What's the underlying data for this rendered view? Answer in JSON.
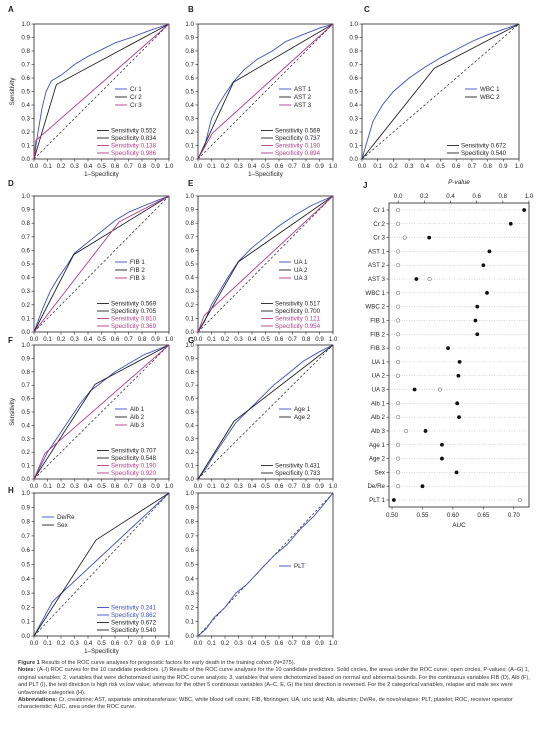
{
  "panels": [
    {
      "id": "A",
      "letter": "A",
      "xlabel": "1–Specificity",
      "ylabel": "Sensitivity",
      "legend": [
        "Cr 1",
        "Cr 2",
        "Cr 3"
      ],
      "stats": [
        {
          "text": "Sensitivity 0.552",
          "color": "#222"
        },
        {
          "text": "Specificity 0.834",
          "color": "#222"
        },
        {
          "text": "Sensitivity 0.138",
          "color": "#b03a8c"
        },
        {
          "text": "Specificity 0.986",
          "color": "#b03a8c"
        }
      ],
      "curves": [
        {
          "color": "#3a4fbf",
          "pts": [
            [
              0,
              0
            ],
            [
              0.03,
              0.2
            ],
            [
              0.06,
              0.38
            ],
            [
              0.09,
              0.5
            ],
            [
              0.13,
              0.58
            ],
            [
              0.2,
              0.62
            ],
            [
              0.3,
              0.7
            ],
            [
              0.4,
              0.76
            ],
            [
              0.52,
              0.82
            ],
            [
              0.6,
              0.86
            ],
            [
              0.72,
              0.9
            ],
            [
              0.85,
              0.95
            ],
            [
              1,
              1
            ]
          ]
        },
        {
          "color": "#222",
          "pts": [
            [
              0,
              0
            ],
            [
              0.166,
              0.552
            ],
            [
              1,
              1
            ]
          ]
        },
        {
          "color": "#b03a8c",
          "pts": [
            [
              0,
              0
            ],
            [
              0.014,
              0.138
            ],
            [
              1,
              1
            ]
          ]
        }
      ]
    },
    {
      "id": "B",
      "letter": "B",
      "xlabel": "1–Specificity",
      "ylabel": "",
      "legend": [
        "AST 1",
        "AST 2",
        "AST 3"
      ],
      "stats": [
        {
          "text": "Sensitivity 0.569",
          "color": "#222"
        },
        {
          "text": "Specificity 0.737",
          "color": "#222"
        },
        {
          "text": "Sensitivity 0.190",
          "color": "#b03a8c"
        },
        {
          "text": "Specificity 0.894",
          "color": "#b03a8c"
        }
      ],
      "curves": [
        {
          "color": "#3a4fbf",
          "pts": [
            [
              0,
              0
            ],
            [
              0.05,
              0.1
            ],
            [
              0.1,
              0.3
            ],
            [
              0.15,
              0.4
            ],
            [
              0.2,
              0.48
            ],
            [
              0.26,
              0.57
            ],
            [
              0.34,
              0.66
            ],
            [
              0.44,
              0.74
            ],
            [
              0.55,
              0.8
            ],
            [
              0.65,
              0.87
            ],
            [
              0.8,
              0.93
            ],
            [
              0.9,
              0.97
            ],
            [
              1,
              1
            ]
          ]
        },
        {
          "color": "#222",
          "pts": [
            [
              0,
              0
            ],
            [
              0.263,
              0.569
            ],
            [
              1,
              1
            ]
          ]
        },
        {
          "color": "#b03a8c",
          "pts": [
            [
              0,
              0
            ],
            [
              0.106,
              0.19
            ],
            [
              1,
              1
            ]
          ]
        }
      ]
    },
    {
      "id": "C",
      "letter": "C",
      "xlabel": "",
      "ylabel": "",
      "legend": [
        "WBC 1",
        "WBC 2"
      ],
      "stats": [
        {
          "text": "Sensitivity 0.672",
          "color": "#222"
        },
        {
          "text": "Specificity 0.540",
          "color": "#222"
        }
      ],
      "curves": [
        {
          "color": "#3a4fbf",
          "pts": [
            [
              0,
              0
            ],
            [
              0.03,
              0.12
            ],
            [
              0.07,
              0.28
            ],
            [
              0.13,
              0.4
            ],
            [
              0.2,
              0.5
            ],
            [
              0.3,
              0.6
            ],
            [
              0.4,
              0.68
            ],
            [
              0.5,
              0.75
            ],
            [
              0.6,
              0.81
            ],
            [
              0.7,
              0.87
            ],
            [
              0.8,
              0.92
            ],
            [
              0.9,
              0.96
            ],
            [
              1,
              1
            ]
          ]
        },
        {
          "color": "#222",
          "pts": [
            [
              0,
              0
            ],
            [
              0.46,
              0.672
            ],
            [
              1,
              1
            ]
          ]
        }
      ]
    },
    {
      "id": "D",
      "letter": "D",
      "xlabel": "",
      "ylabel": "",
      "legend": [
        "FIB 1",
        "FIB 2",
        "FIB 3"
      ],
      "stats": [
        {
          "text": "Sensitivity 0.569",
          "color": "#222"
        },
        {
          "text": "Specificity 0.705",
          "color": "#222"
        },
        {
          "text": "Sensitivity 0.810",
          "color": "#b03a8c"
        },
        {
          "text": "Specificity 0.369",
          "color": "#b03a8c"
        }
      ],
      "curves": [
        {
          "color": "#3a4fbf",
          "pts": [
            [
              0,
              0
            ],
            [
              0.06,
              0.16
            ],
            [
              0.12,
              0.3
            ],
            [
              0.18,
              0.4
            ],
            [
              0.25,
              0.5
            ],
            [
              0.3,
              0.58
            ],
            [
              0.4,
              0.66
            ],
            [
              0.5,
              0.74
            ],
            [
              0.6,
              0.82
            ],
            [
              0.7,
              0.88
            ],
            [
              0.82,
              0.93
            ],
            [
              0.92,
              0.97
            ],
            [
              1,
              1
            ]
          ]
        },
        {
          "color": "#222",
          "pts": [
            [
              0,
              0
            ],
            [
              0.295,
              0.569
            ],
            [
              1,
              1
            ]
          ]
        },
        {
          "color": "#b03a8c",
          "pts": [
            [
              0,
              0
            ],
            [
              0.631,
              0.81
            ],
            [
              1,
              1
            ]
          ]
        }
      ]
    },
    {
      "id": "E",
      "letter": "E",
      "xlabel": "",
      "ylabel": "",
      "legend": [
        "UA 1",
        "UA 2",
        "UA 3"
      ],
      "stats": [
        {
          "text": "Sensitivity 0.517",
          "color": "#222"
        },
        {
          "text": "Specificity 0.700",
          "color": "#222"
        },
        {
          "text": "Sensitivity 0.121",
          "color": "#b03a8c"
        },
        {
          "text": "Specificity 0.954",
          "color": "#b03a8c"
        }
      ],
      "curves": [
        {
          "color": "#3a4fbf",
          "pts": [
            [
              0,
              0
            ],
            [
              0.05,
              0.08
            ],
            [
              0.1,
              0.2
            ],
            [
              0.16,
              0.3
            ],
            [
              0.22,
              0.4
            ],
            [
              0.3,
              0.52
            ],
            [
              0.4,
              0.62
            ],
            [
              0.5,
              0.7
            ],
            [
              0.6,
              0.78
            ],
            [
              0.72,
              0.86
            ],
            [
              0.84,
              0.93
            ],
            [
              1,
              1
            ]
          ]
        },
        {
          "color": "#222",
          "pts": [
            [
              0,
              0
            ],
            [
              0.3,
              0.517
            ],
            [
              1,
              1
            ]
          ]
        },
        {
          "color": "#b03a8c",
          "pts": [
            [
              0,
              0
            ],
            [
              0.046,
              0.121
            ],
            [
              1,
              1
            ]
          ]
        }
      ]
    },
    {
      "id": "F",
      "letter": "F",
      "xlabel": "",
      "ylabel": "Sensitivity",
      "legend": [
        "Alb 1",
        "Alb 2",
        "Alb 3"
      ],
      "stats": [
        {
          "text": "Sensitivity 0.707",
          "color": "#222"
        },
        {
          "text": "Specificity 0.548",
          "color": "#222"
        },
        {
          "text": "Sensitivity 0.190",
          "color": "#b03a8c"
        },
        {
          "text": "Specificity 0.920",
          "color": "#b03a8c"
        }
      ],
      "curves": [
        {
          "color": "#3a4fbf",
          "pts": [
            [
              0,
              0
            ],
            [
              0.05,
              0.1
            ],
            [
              0.1,
              0.2
            ],
            [
              0.18,
              0.32
            ],
            [
              0.26,
              0.44
            ],
            [
              0.34,
              0.56
            ],
            [
              0.42,
              0.66
            ],
            [
              0.5,
              0.72
            ],
            [
              0.6,
              0.8
            ],
            [
              0.7,
              0.86
            ],
            [
              0.82,
              0.93
            ],
            [
              1,
              1
            ]
          ]
        },
        {
          "color": "#222",
          "pts": [
            [
              0,
              0
            ],
            [
              0.452,
              0.707
            ],
            [
              1,
              1
            ]
          ]
        },
        {
          "color": "#b03a8c",
          "pts": [
            [
              0,
              0
            ],
            [
              0.08,
              0.19
            ],
            [
              1,
              1
            ]
          ]
        }
      ]
    },
    {
      "id": "G",
      "letter": "G",
      "xlabel": "",
      "ylabel": "",
      "legend": [
        "Age 1",
        "Age 2"
      ],
      "stats": [
        {
          "text": "Sensitivity 0.431",
          "color": "#222"
        },
        {
          "text": "Specificity 0.733",
          "color": "#222"
        }
      ],
      "curves": [
        {
          "color": "#3a4fbf",
          "pts": [
            [
              0,
              0
            ],
            [
              0.06,
              0.08
            ],
            [
              0.12,
              0.18
            ],
            [
              0.2,
              0.3
            ],
            [
              0.28,
              0.42
            ],
            [
              0.36,
              0.5
            ],
            [
              0.46,
              0.6
            ],
            [
              0.56,
              0.7
            ],
            [
              0.66,
              0.78
            ],
            [
              0.78,
              0.88
            ],
            [
              0.9,
              0.95
            ],
            [
              1,
              1
            ]
          ]
        },
        {
          "color": "#222",
          "pts": [
            [
              0,
              0
            ],
            [
              0.267,
              0.431
            ],
            [
              1,
              1
            ]
          ]
        }
      ]
    },
    {
      "id": "H",
      "letter": "H",
      "xlabel": "1–Specificity",
      "ylabel": "",
      "legend": [
        "De/Re",
        "Sex"
      ],
      "stats": [
        {
          "text": "Sensitivity 0.241",
          "color": "#3a4fbf"
        },
        {
          "text": "Specificity 0.862",
          "color": "#3a4fbf"
        },
        {
          "text": "Sensitivity 0.672",
          "color": "#222"
        },
        {
          "text": "Specificity 0.540",
          "color": "#222"
        }
      ],
      "curves": [
        {
          "color": "#3a4fbf",
          "pts": [
            [
              0,
              0
            ],
            [
              0.138,
              0.241
            ],
            [
              1,
              1
            ]
          ]
        },
        {
          "color": "#222",
          "pts": [
            [
              0,
              0
            ],
            [
              0.46,
              0.672
            ],
            [
              1,
              1
            ]
          ]
        }
      ]
    },
    {
      "id": "I",
      "letter": "",
      "xlabel": "",
      "ylabel": "",
      "legend": [
        "PLT"
      ],
      "stats": [],
      "curves": [
        {
          "color": "#3a4fbf",
          "pts": [
            [
              0,
              0
            ],
            [
              0.06,
              0.05
            ],
            [
              0.12,
              0.13
            ],
            [
              0.2,
              0.2
            ],
            [
              0.28,
              0.3
            ],
            [
              0.36,
              0.36
            ],
            [
              0.46,
              0.46
            ],
            [
              0.56,
              0.56
            ],
            [
              0.66,
              0.64
            ],
            [
              0.76,
              0.75
            ],
            [
              0.86,
              0.84
            ],
            [
              0.94,
              0.93
            ],
            [
              1,
              1
            ]
          ]
        }
      ]
    }
  ],
  "ticks": [
    "0.0",
    "0.1",
    "0.2",
    "0.3",
    "0.4",
    "0.5",
    "0.6",
    "0.7",
    "0.8",
    "0.9",
    "1.0"
  ],
  "chart_data": {
    "type": "scatter",
    "letter": "J",
    "title": "P-value",
    "xlabel": "AUC",
    "auc_ticks": [
      "0.50",
      "0.55",
      "0.60",
      "0.65",
      "0.70"
    ],
    "p_ticks": [
      "0.0",
      "0.2",
      "0.4",
      "0.6",
      "0.8",
      "1.0"
    ],
    "auc_range": [
      0.495,
      0.725
    ],
    "p_range": [
      -0.07,
      1.0
    ],
    "rows": [
      {
        "label": "Cr 1",
        "auc": 0.717,
        "p": 0.0
      },
      {
        "label": "Cr 2",
        "auc": 0.695,
        "p": 0.0
      },
      {
        "label": "Cr 3",
        "auc": 0.561,
        "p": 0.05
      },
      {
        "label": "AST 1",
        "auc": 0.66,
        "p": 0.0
      },
      {
        "label": "AST 2",
        "auc": 0.65,
        "p": 0.0
      },
      {
        "label": "AST 3",
        "auc": 0.54,
        "p": 0.24
      },
      {
        "label": "WBC 1",
        "auc": 0.656,
        "p": 0.0
      },
      {
        "label": "WBC 2",
        "auc": 0.64,
        "p": 0.0
      },
      {
        "label": "FIB 1",
        "auc": 0.637,
        "p": 0.0
      },
      {
        "label": "FIB 2",
        "auc": 0.64,
        "p": 0.0
      },
      {
        "label": "FIB 3",
        "auc": 0.592,
        "p": 0.0
      },
      {
        "label": "UA 1",
        "auc": 0.611,
        "p": 0.0
      },
      {
        "label": "UA 2",
        "auc": 0.609,
        "p": 0.0
      },
      {
        "label": "UA 3",
        "auc": 0.537,
        "p": 0.32
      },
      {
        "label": "Alb 1",
        "auc": 0.607,
        "p": 0.0
      },
      {
        "label": "Alb 2",
        "auc": 0.61,
        "p": 0.0
      },
      {
        "label": "Alb 3",
        "auc": 0.555,
        "p": 0.06
      },
      {
        "label": "Age 1",
        "auc": 0.582,
        "p": 0.0
      },
      {
        "label": "Age 2",
        "auc": 0.582,
        "p": 0.0
      },
      {
        "label": "Sex",
        "auc": 0.606,
        "p": 0.0
      },
      {
        "label": "De/Re",
        "auc": 0.55,
        "p": 0.0
      },
      {
        "label": "PLT 1",
        "auc": 0.503,
        "p": 0.93
      }
    ]
  },
  "caption": {
    "title_bold": "Figure 1",
    "title": " Results of the ROC curve analyses for prognostic factors for early death in the training cohort (N=275).",
    "notes_bold": "Notes:",
    "notes": " (A–I) ROC curves for the 10 candidate predictors. (J) Results of the ROC curve analyses for the 10 candidate predictors. Solid circles, the areas under the ROC curve; open circles, P-values; (A–G) 1, original variables; 2, variables that were dichotomized using the ROC curve analysis; 3, variables that were dichotomized based on normal and abnormal bounds. For the continuous variables FIB (D), Alb (F), and PLT (I), the test direction is high risk vs low value, whereas for the other 5 continuous variables (A–C, E, G) the test direction is reversed. For the 2 categorical variables, relapse and male sex were unfavorable categories (H).",
    "abbr_bold": "Abbreviations:",
    "abbr": " Cr, creatinine; AST, aspartate aminotransferase; WBC, white blood cell count; FIB, fibrinogen; UA, uric acid; Alb, albumin; De/Re, de novo/relapse; PLT, platelet; ROC, receiver operator characteristic; AUC, area under the ROC curve."
  }
}
